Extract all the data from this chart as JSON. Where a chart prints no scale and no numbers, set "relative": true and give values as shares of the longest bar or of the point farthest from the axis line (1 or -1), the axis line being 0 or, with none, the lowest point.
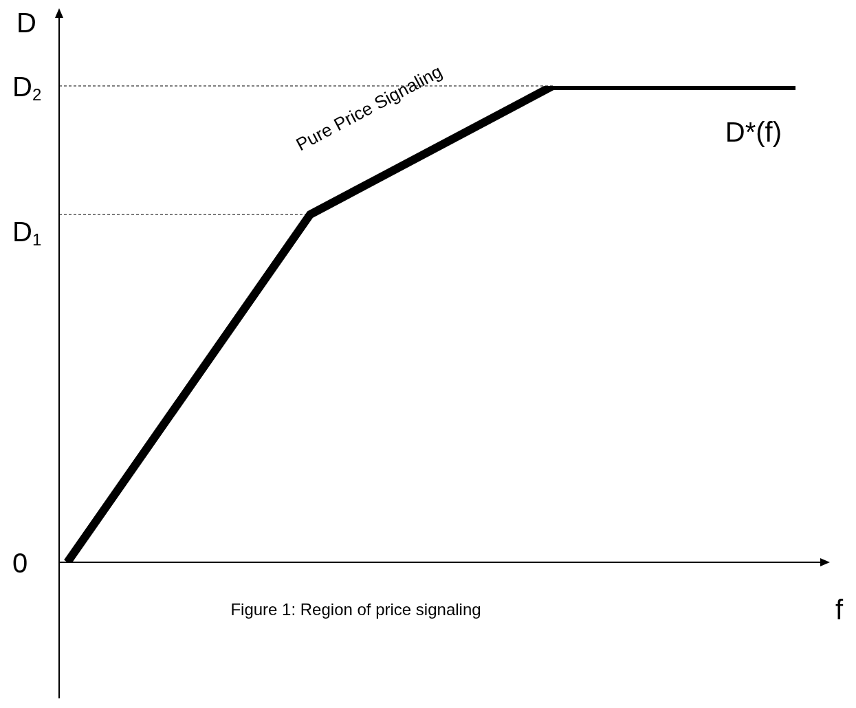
{
  "chart_data": {
    "type": "line",
    "relative": true,
    "categories": [
      null,
      null,
      null,
      null
    ],
    "xlabel": "f",
    "ylabel": "D",
    "series": [
      {
        "name": "D*(f)",
        "color": "#000000",
        "values": [
          0,
          0.73,
          1,
          1
        ]
      }
    ],
    "ref_lines": [
      {
        "axis": "y",
        "value": 0.73,
        "label": "D$_{1}$",
        "line_style": "dashed",
        "color": "#000000"
      },
      {
        "axis": "y",
        "value": 1,
        "label": "D$_{2}$",
        "line_style": "dashed",
        "color": "#000000"
      },
      {
        "axis": "y",
        "value": 0,
        "label": "0"
      }
    ],
    "annotations": [
      "Pure Price Signaling",
      "Figure 1: Region of price signaling"
    ],
    "legend": false,
    "grid": false,
    "marker": "none",
    "line_style": "solid"
  }
}
